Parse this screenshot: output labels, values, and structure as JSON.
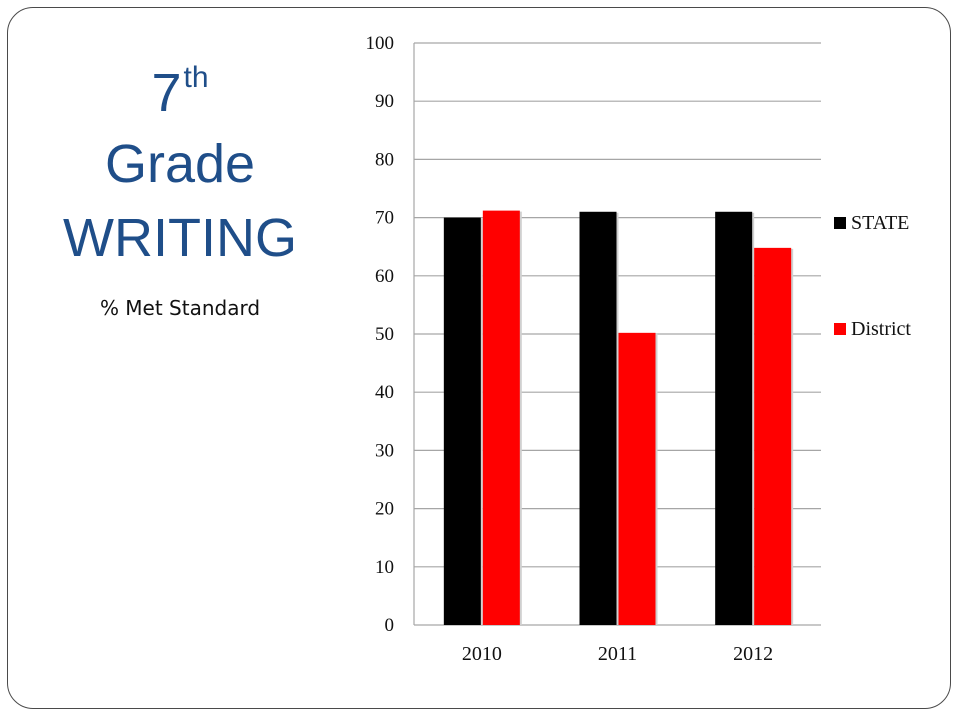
{
  "slide": {
    "title_number": "7",
    "title_suffix": "th",
    "title_line2": "Grade",
    "title_line3": "WRITING",
    "subtitle": "% Met Standard"
  },
  "colors": {
    "title": "#1f4e89",
    "state": "#000000",
    "district": "#ff0000",
    "grid": "#a6a6a6"
  },
  "chart_data": {
    "type": "bar",
    "title": "",
    "xlabel": "",
    "ylabel": "",
    "categories": [
      "2010",
      "2011",
      "2012"
    ],
    "series": [
      {
        "name": "STATE",
        "values": [
          70,
          71,
          71
        ]
      },
      {
        "name": "District",
        "values": [
          71.2,
          50.2,
          64.8
        ]
      }
    ],
    "ylim": [
      0,
      100
    ],
    "yticks": [
      "0",
      "10",
      "20",
      "30",
      "40",
      "50",
      "60",
      "70",
      "80",
      "90",
      "100"
    ],
    "grid": true,
    "legend_position": "right"
  }
}
